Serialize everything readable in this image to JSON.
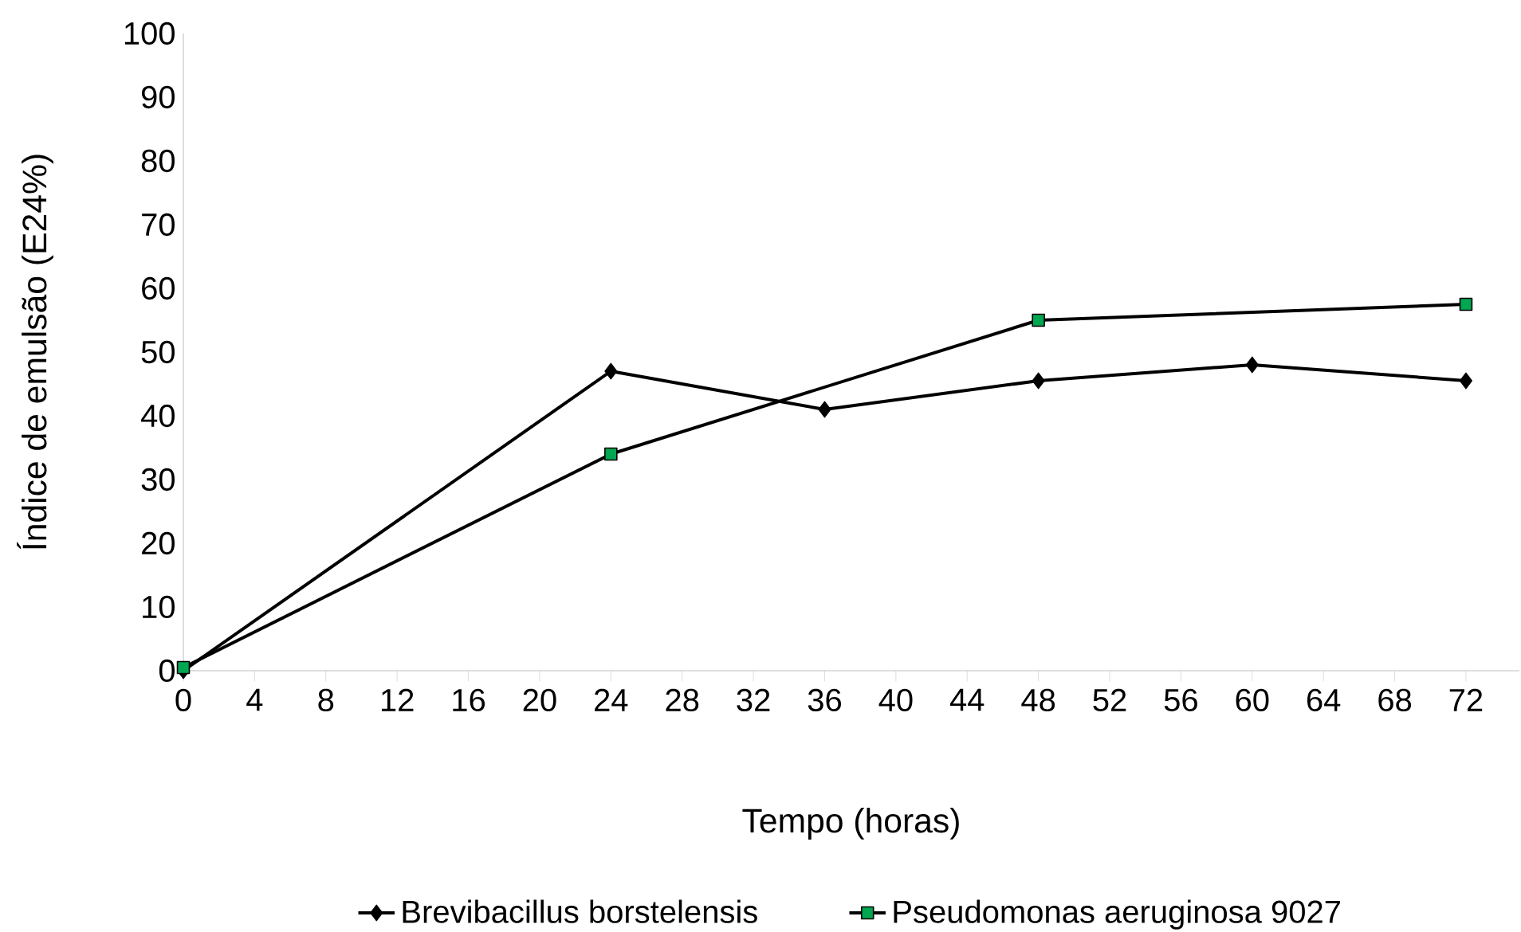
{
  "chart_data": {
    "type": "line",
    "xlabel": "Tempo (horas)",
    "ylabel": "Índice de emulsão (E24%)",
    "xlim": [
      0,
      75
    ],
    "xticks": [
      0,
      4,
      8,
      12,
      16,
      20,
      24,
      28,
      32,
      36,
      40,
      44,
      48,
      52,
      56,
      60,
      64,
      68,
      72
    ],
    "ylim": [
      0,
      100
    ],
    "yticks": [
      0,
      10,
      20,
      30,
      40,
      50,
      60,
      70,
      80,
      90,
      100
    ],
    "grid": false,
    "legend": "bottom",
    "line_style": "solid",
    "series": [
      {
        "name": "Brevibacillus borstelensis",
        "color": "#000000",
        "marker": "diamond",
        "x": [
          0,
          24,
          36,
          48,
          60,
          72
        ],
        "values": [
          0,
          47,
          41,
          45.5,
          48,
          45.5
        ]
      },
      {
        "name": "Pseudomonas aeruginosa 9027",
        "color": "#00a650",
        "marker": "square",
        "x": [
          0,
          24,
          48,
          72
        ],
        "values": [
          0.5,
          34,
          55,
          57.5
        ]
      }
    ]
  }
}
